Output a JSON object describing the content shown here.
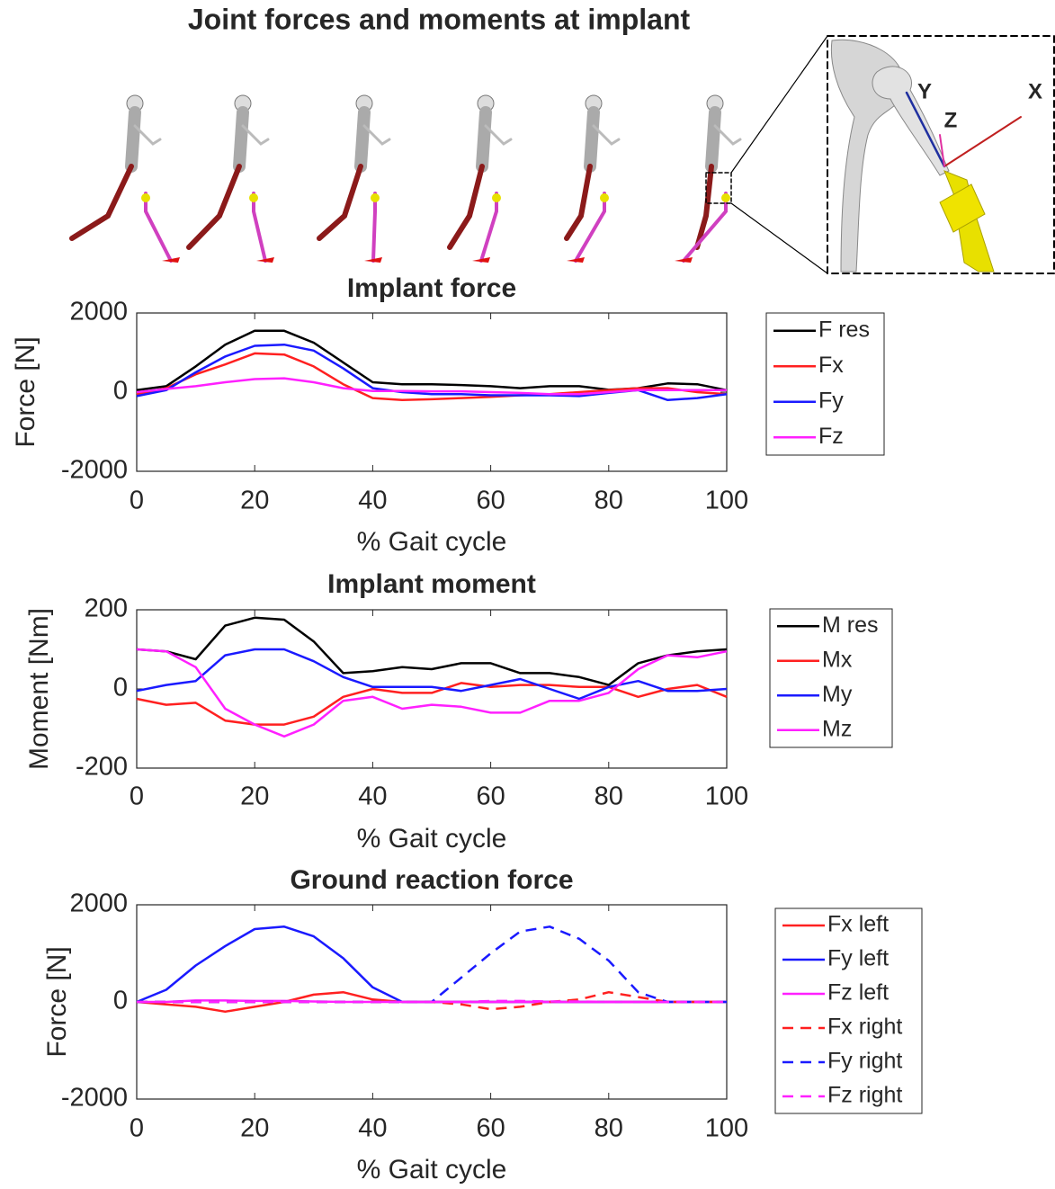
{
  "title": "Joint forces and moments at implant",
  "illustration": {
    "axis_labels": [
      "X",
      "Y",
      "Z"
    ]
  },
  "chart_data": [
    {
      "type": "line",
      "title": "Implant force",
      "xlabel": "% Gait cycle",
      "ylabel": "Force [N]",
      "x": [
        0,
        5,
        10,
        15,
        20,
        25,
        30,
        35,
        40,
        45,
        50,
        55,
        60,
        65,
        70,
        75,
        80,
        85,
        90,
        95,
        100
      ],
      "xlim": [
        0,
        100
      ],
      "xticks": [
        0,
        20,
        40,
        60,
        80,
        100
      ],
      "ylim": [
        -2000,
        2000
      ],
      "yticks": [
        -2000,
        0,
        2000
      ],
      "legend": "outside-right",
      "series": [
        {
          "name": "F res",
          "color": "#000000",
          "values": [
            50,
            150,
            650,
            1200,
            1550,
            1550,
            1250,
            750,
            250,
            200,
            200,
            180,
            150,
            100,
            150,
            150,
            60,
            100,
            220,
            200,
            50
          ]
        },
        {
          "name": "Fx",
          "color": "#ff2020",
          "values": [
            -50,
            100,
            450,
            700,
            980,
            950,
            650,
            200,
            -150,
            -200,
            -180,
            -150,
            -120,
            -80,
            -50,
            0,
            50,
            100,
            100,
            0,
            -50
          ]
        },
        {
          "name": "Fy",
          "color": "#1a1aff",
          "values": [
            -100,
            50,
            500,
            900,
            1170,
            1200,
            1050,
            600,
            100,
            0,
            -50,
            -50,
            -80,
            -80,
            -80,
            -100,
            -20,
            50,
            -200,
            -150,
            -50
          ]
        },
        {
          "name": "Fz",
          "color": "#ff20ff",
          "values": [
            0,
            80,
            150,
            250,
            330,
            350,
            250,
            100,
            30,
            30,
            20,
            20,
            0,
            -20,
            -50,
            -50,
            0,
            50,
            50,
            50,
            50
          ]
        }
      ]
    },
    {
      "type": "line",
      "title": "Implant moment",
      "xlabel": "% Gait cycle",
      "ylabel": "Moment [Nm]",
      "x": [
        0,
        5,
        10,
        15,
        20,
        25,
        30,
        35,
        40,
        45,
        50,
        55,
        60,
        65,
        70,
        75,
        80,
        85,
        90,
        95,
        100
      ],
      "xlim": [
        0,
        100
      ],
      "xticks": [
        0,
        20,
        40,
        60,
        80,
        100
      ],
      "ylim": [
        -200,
        200
      ],
      "yticks": [
        -200,
        0,
        200
      ],
      "legend": "outside-right",
      "series": [
        {
          "name": "M res",
          "color": "#000000",
          "values": [
            100,
            95,
            75,
            160,
            180,
            175,
            120,
            40,
            45,
            55,
            50,
            65,
            65,
            40,
            40,
            30,
            10,
            65,
            85,
            95,
            100
          ]
        },
        {
          "name": "Mx",
          "color": "#ff2020",
          "values": [
            -25,
            -40,
            -35,
            -80,
            -90,
            -90,
            -70,
            -20,
            0,
            -10,
            -10,
            15,
            5,
            10,
            10,
            5,
            5,
            -20,
            0,
            10,
            -20
          ]
        },
        {
          "name": "My",
          "color": "#1a1aff",
          "values": [
            -5,
            10,
            20,
            85,
            100,
            100,
            70,
            30,
            5,
            5,
            5,
            -5,
            10,
            25,
            0,
            -25,
            5,
            20,
            -5,
            -5,
            0
          ]
        },
        {
          "name": "Mz",
          "color": "#ff20ff",
          "values": [
            100,
            95,
            55,
            -50,
            -90,
            -120,
            -90,
            -30,
            -20,
            -50,
            -40,
            -45,
            -60,
            -60,
            -30,
            -30,
            -10,
            50,
            85,
            80,
            95
          ]
        }
      ]
    },
    {
      "type": "line",
      "title": "Ground reaction force",
      "xlabel": "% Gait cycle",
      "ylabel": "Force [N]",
      "x": [
        0,
        5,
        10,
        15,
        20,
        25,
        30,
        35,
        40,
        45,
        50,
        55,
        60,
        65,
        70,
        75,
        80,
        85,
        90,
        95,
        100
      ],
      "xlim": [
        0,
        100
      ],
      "xticks": [
        0,
        20,
        40,
        60,
        80,
        100
      ],
      "ylim": [
        -2000,
        2000
      ],
      "yticks": [
        -2000,
        0,
        2000
      ],
      "legend": "outside-right",
      "series": [
        {
          "name": "Fx left",
          "color": "#ff2020",
          "dashed": false,
          "values": [
            0,
            -50,
            -100,
            -200,
            -100,
            0,
            150,
            200,
            50,
            0,
            0,
            0,
            0,
            0,
            0,
            0,
            0,
            0,
            0,
            0,
            0
          ]
        },
        {
          "name": "Fy left",
          "color": "#1a1aff",
          "dashed": false,
          "values": [
            0,
            250,
            750,
            1150,
            1500,
            1550,
            1350,
            900,
            300,
            0,
            0,
            0,
            0,
            0,
            0,
            0,
            0,
            0,
            0,
            0,
            0
          ]
        },
        {
          "name": "Fz left",
          "color": "#ff20ff",
          "dashed": false,
          "values": [
            0,
            0,
            30,
            30,
            20,
            20,
            10,
            0,
            0,
            0,
            0,
            0,
            0,
            0,
            0,
            0,
            0,
            0,
            0,
            0,
            0
          ]
        },
        {
          "name": "Fx right",
          "color": "#ff2020",
          "dashed": true,
          "values": [
            0,
            0,
            0,
            0,
            0,
            0,
            0,
            0,
            0,
            0,
            0,
            -50,
            -150,
            -100,
            0,
            50,
            200,
            100,
            0,
            0,
            0
          ]
        },
        {
          "name": "Fy right",
          "color": "#1a1aff",
          "dashed": true,
          "values": [
            0,
            0,
            0,
            0,
            0,
            0,
            0,
            0,
            0,
            0,
            0,
            500,
            1000,
            1450,
            1550,
            1300,
            850,
            200,
            0,
            0,
            0
          ]
        },
        {
          "name": "Fz right",
          "color": "#ff20ff",
          "dashed": true,
          "values": [
            0,
            0,
            0,
            0,
            0,
            0,
            0,
            0,
            0,
            0,
            0,
            0,
            20,
            20,
            10,
            10,
            0,
            0,
            0,
            0,
            0
          ]
        }
      ]
    }
  ]
}
